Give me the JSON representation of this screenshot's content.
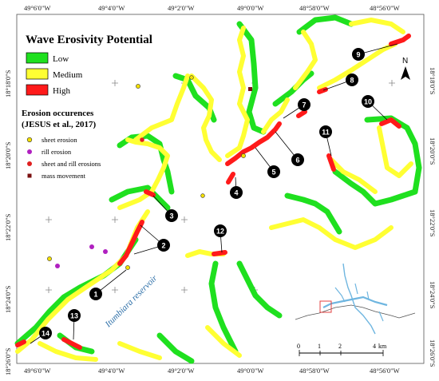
{
  "legend": {
    "title": "Wave Erosivity Potential",
    "classes": [
      {
        "label": "Low",
        "color": "#1fe01f"
      },
      {
        "label": "Medium",
        "color": "#ffff33"
      },
      {
        "label": "High",
        "color": "#ff1a1a"
      }
    ],
    "occurrence_title_line1": "Erosion occurences",
    "occurrence_title_line2": "(JESUS et al., 2017)",
    "occurrences": [
      {
        "label": "sheet erosion",
        "color": "#f4e000"
      },
      {
        "label": "rill erosion",
        "color": "#b020c0"
      },
      {
        "label": "sheet and rill erosions",
        "color": "#e02020"
      },
      {
        "label": "mass movement",
        "color": "#7a1010"
      }
    ]
  },
  "coords": {
    "top": [
      "49°6'0\"W",
      "49°4'0\"W",
      "49°2'0\"W",
      "49°0'0\"W",
      "48°58'0\"W",
      "48°56'0\"W"
    ],
    "bottom": [
      "49°6'0\"W",
      "49°4'0\"W",
      "49°2'0\"W",
      "49°0'0\"W",
      "48°58'0\"W",
      "48°56'0\"W"
    ],
    "left": [
      "18°18'0\"S",
      "18°20'0\"S",
      "18°22'0\"S",
      "18°24'0\"S",
      "18°26'0\"S"
    ],
    "right": [
      "18°18'0\"S",
      "18°20'0\"S",
      "18°22'0\"S",
      "18°24'0\"S",
      "18°26'0\"S"
    ]
  },
  "markers": [
    "1",
    "2",
    "2",
    "3",
    "4",
    "5",
    "6",
    "7",
    "8",
    "9",
    "10",
    "11",
    "12",
    "13",
    "14"
  ],
  "reservoir_label": "Itumbiara reservoir",
  "north_label": "N",
  "scale_bar": {
    "ticks": [
      "0",
      "1",
      "2",
      "4"
    ],
    "unit": "km"
  }
}
